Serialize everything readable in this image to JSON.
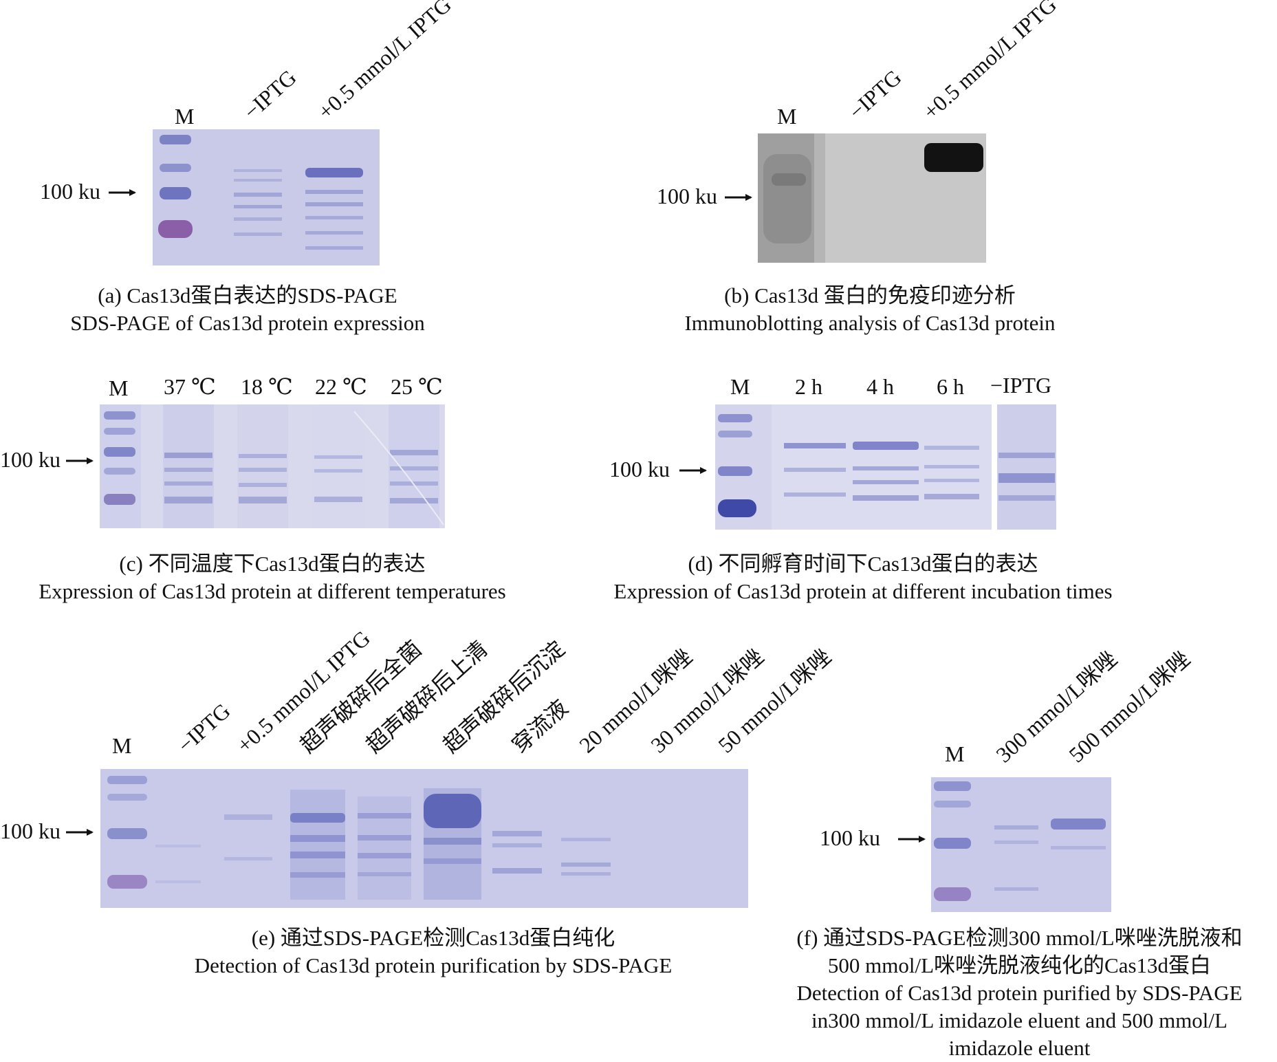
{
  "panels": {
    "a": {
      "lanes": [
        "M",
        "−IPTG",
        "+0.5 mmol/L IPTG"
      ],
      "marker": "100 ku",
      "caption_cn": "(a) Cas13d蛋白表达的SDS-PAGE",
      "caption_en": "SDS-PAGE of Cas13d protein expression"
    },
    "b": {
      "lanes": [
        "M",
        "−IPTG",
        "+0.5 mmol/L IPTG"
      ],
      "marker": "100 ku",
      "caption_cn": "(b) Cas13d 蛋白的免疫印迹分析",
      "caption_en": "Immunoblotting analysis of Cas13d protein"
    },
    "c": {
      "lanes": [
        "M",
        "37 ℃",
        "18 ℃",
        "22 ℃",
        "25 ℃"
      ],
      "marker": "100 ku",
      "caption_cn": "(c) 不同温度下Cas13d蛋白的表达",
      "caption_en": "Expression of Cas13d protein at different temperatures"
    },
    "d": {
      "lanes": [
        "M",
        "2 h",
        "4 h",
        "6 h",
        "−IPTG"
      ],
      "marker": "100 ku",
      "caption_cn": "(d) 不同孵育时间下Cas13d蛋白的表达",
      "caption_en": "Expression of Cas13d protein at different incubation times"
    },
    "e": {
      "lanes": [
        "M",
        "−IPTG",
        "+0.5 mmol/L IPTG",
        "超声破碎后全菌",
        "超声破碎后上清",
        "超声破碎后沉淀",
        "穿流液",
        "20 mmol/L咪唑",
        "30 mmol/L咪唑",
        "50 mmol/L咪唑"
      ],
      "marker": "100 ku",
      "caption_cn": "(e) 通过SDS-PAGE检测Cas13d蛋白纯化",
      "caption_en": "Detection of Cas13d protein purification by SDS-PAGE"
    },
    "f": {
      "lanes": [
        "M",
        "300 mmol/L咪唑",
        "500 mmol/L咪唑"
      ],
      "marker": "100 ku",
      "caption_cn_1": "(f) 通过SDS-PAGE检测300 mmol/L咪唑洗脱液和",
      "caption_cn_2": "500 mmol/L咪唑洗脱液纯化的Cas13d蛋白",
      "caption_en_1": "Detection of Cas13d protein purified by SDS-PAGE",
      "caption_en_2": "in300 mmol/L imidazole eluent and 500 mmol/L",
      "caption_en_3": "imidazole eluent"
    }
  }
}
